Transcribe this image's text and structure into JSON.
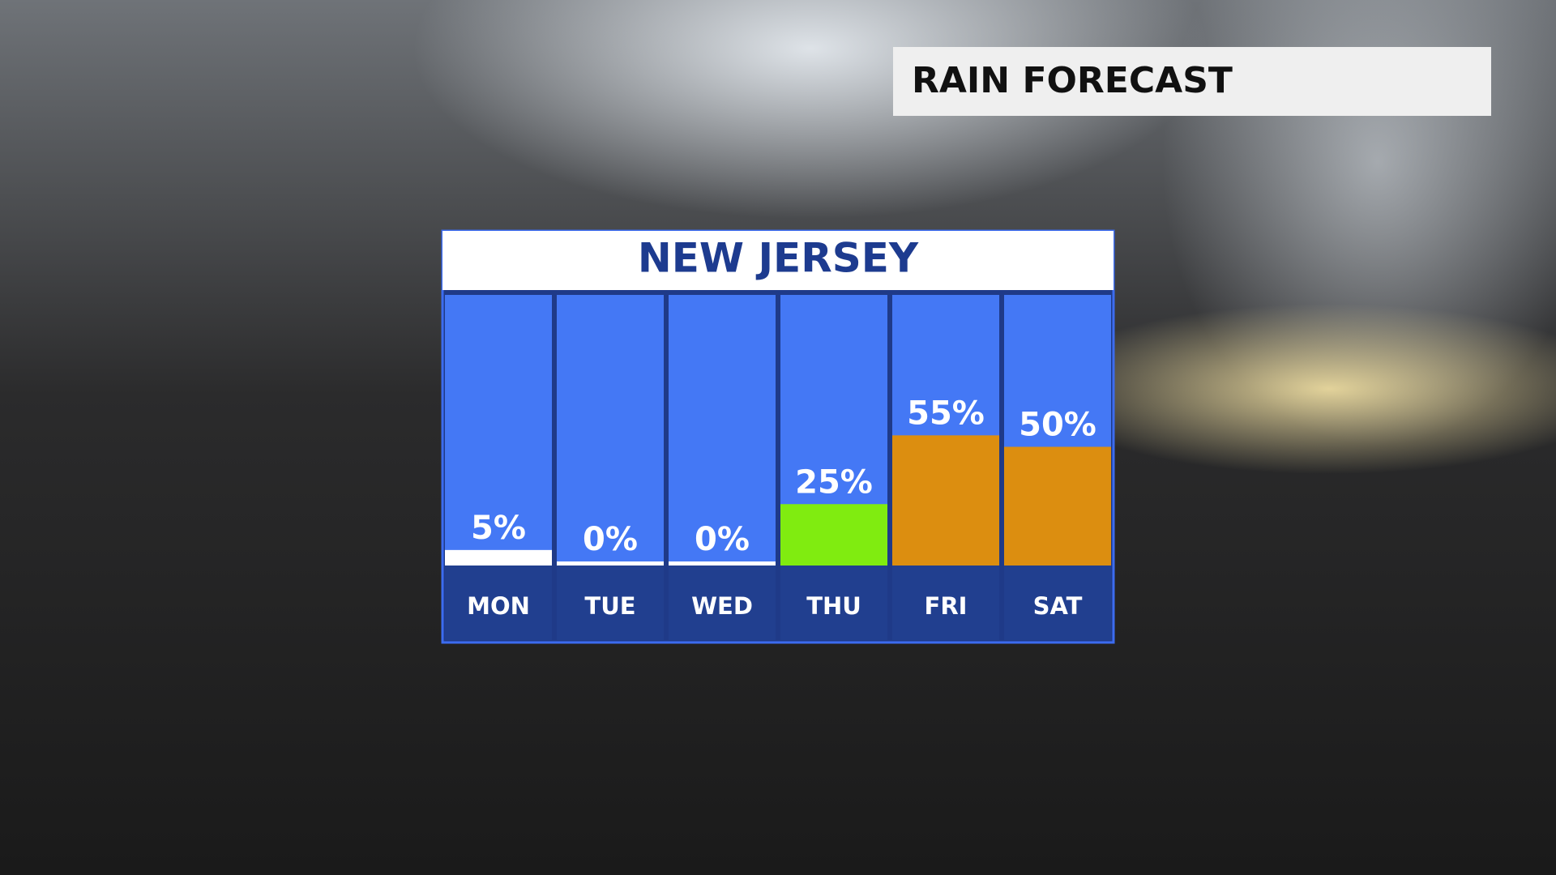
{
  "title": "RAIN FORECAST",
  "chart_data": {
    "type": "bar",
    "title": "NEW JERSEY",
    "categories": [
      "MON",
      "TUE",
      "WED",
      "THU",
      "FRI",
      "SAT"
    ],
    "values": [
      5,
      0,
      0,
      25,
      55,
      50
    ],
    "value_labels": [
      "5%",
      "0%",
      "0%",
      "25%",
      "55%",
      "50%"
    ],
    "colors": [
      "#ffffff",
      "#ffffff",
      "#ffffff",
      "#80ec10",
      "#dc8e10",
      "#dc8e10"
    ],
    "ylim": [
      0,
      100
    ]
  }
}
